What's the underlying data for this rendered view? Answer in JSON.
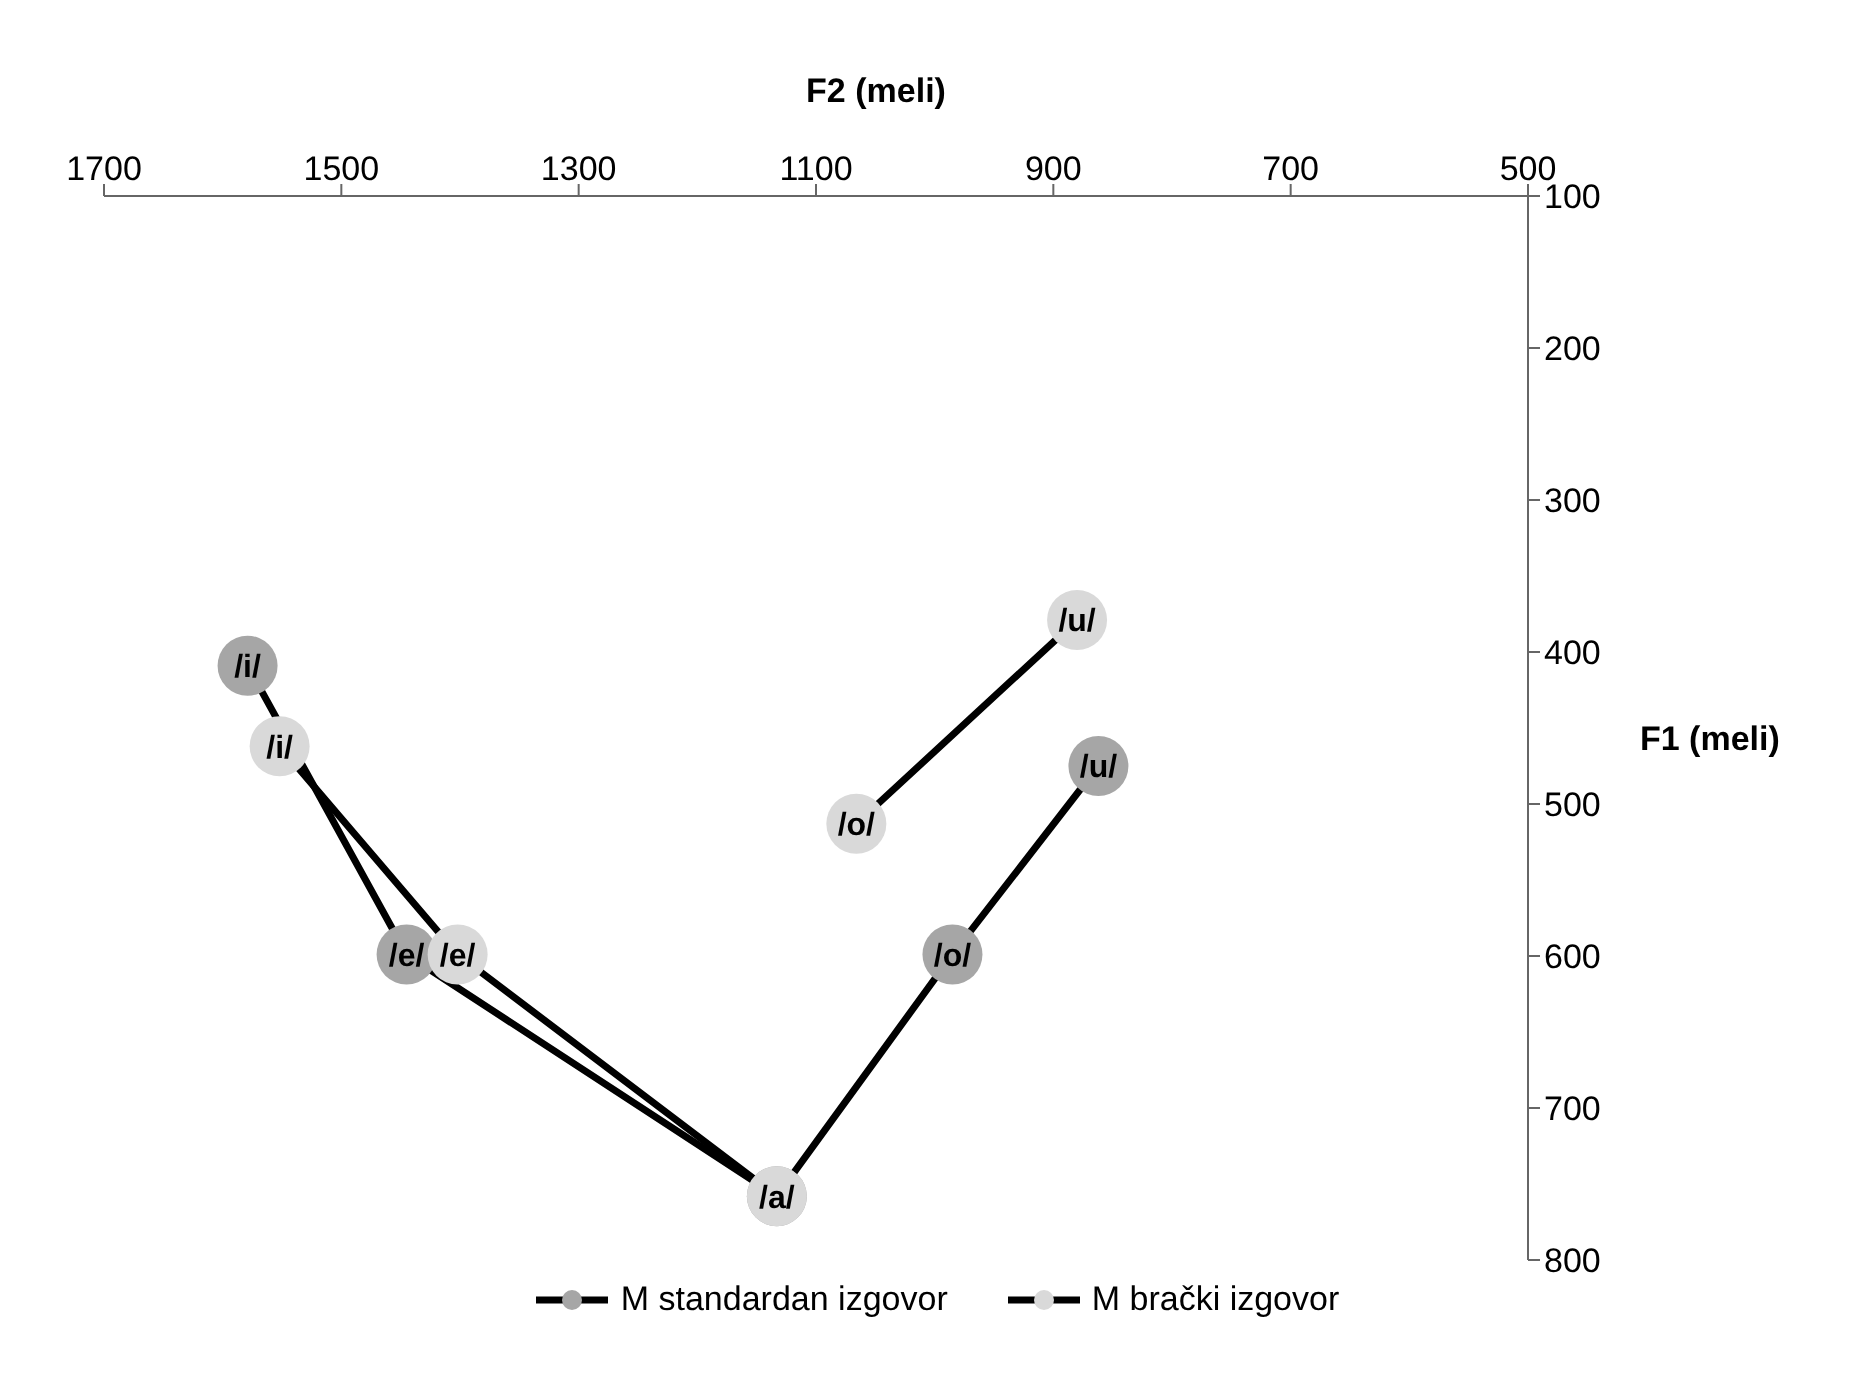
{
  "chart_data": {
    "type": "line",
    "xlabel": "F2 (meli)",
    "ylabel": "F1 (meli)",
    "xlim": [
      1700,
      500
    ],
    "xticks": [
      1700,
      1500,
      1300,
      1100,
      900,
      700,
      500
    ],
    "ylim": [
      800,
      100
    ],
    "yticks": [
      100,
      200,
      300,
      400,
      500,
      600,
      700,
      800
    ],
    "marker": "circle",
    "line_style": "solid",
    "grid": false,
    "legend": "bottom",
    "series": [
      {
        "name": "M brački izgovor",
        "color": "#000000",
        "colors": [
          "#d9d9d9",
          "#d9d9d9",
          "#d9d9d9",
          null,
          "#d9d9d9",
          "#d9d9d9"
        ],
        "x": [
          1552,
          1402,
          1133,
          null,
          1066,
          880
        ],
        "values": [
          462,
          599,
          758,
          null,
          513,
          379
        ]
      },
      {
        "name": "M standardan izgovor",
        "color": "#000000",
        "colors": [
          "#a6a6a6",
          "#a6a6a6",
          "#a6a6a6",
          "#a6a6a6",
          "#a6a6a6"
        ],
        "x": [
          1579,
          1445,
          1133,
          985,
          862
        ],
        "values": [
          409,
          599,
          758,
          599,
          475
        ]
      }
    ],
    "annotations": [
      {
        "text": "/i/",
        "x": 1579,
        "y": 409
      },
      {
        "text": "/e/",
        "x": 1445,
        "y": 599
      },
      {
        "text": "/a/",
        "x": 1133,
        "y": 758
      },
      {
        "text": "/o/",
        "x": 985,
        "y": 599
      },
      {
        "text": "/u/",
        "x": 862,
        "y": 475
      },
      {
        "text": "/i/",
        "x": 1552,
        "y": 462
      },
      {
        "text": "/e/",
        "x": 1402,
        "y": 599
      },
      {
        "text": "/o/",
        "x": 1066,
        "y": 513
      },
      {
        "text": "/u/",
        "x": 880,
        "y": 379
      }
    ]
  }
}
